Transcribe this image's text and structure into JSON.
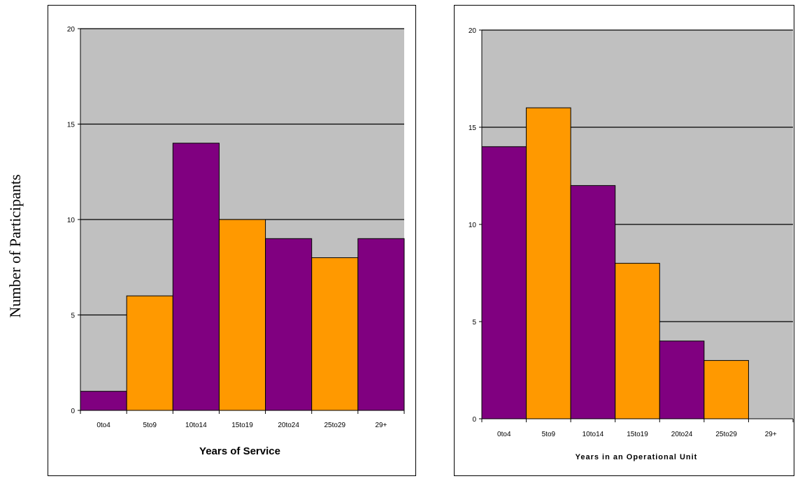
{
  "shared_ylabel": "Number of Participants",
  "colors": {
    "plot_bg": "#c0c0c0",
    "purple": "#800080",
    "orange": "#ff9900",
    "gridline": "#000000"
  },
  "chart_data": [
    {
      "type": "bar",
      "title": "",
      "xlabel": "Years of Service",
      "ylabel": "Number of Participants",
      "categories": [
        "0to4",
        "5to9",
        "10to14",
        "15to19",
        "20to24",
        "25to29",
        "29+"
      ],
      "values": [
        1,
        6,
        14,
        10,
        9,
        8,
        9
      ],
      "bar_colors": [
        "purple",
        "orange",
        "purple",
        "orange",
        "purple",
        "orange",
        "purple"
      ],
      "ylim": [
        0,
        20
      ],
      "yticks": [
        0,
        5,
        10,
        15,
        20
      ],
      "grid": true,
      "legend": "none"
    },
    {
      "type": "bar",
      "title": "",
      "xlabel": "Years in an Operational Unit",
      "ylabel": "Number of Participants",
      "categories": [
        "0to4",
        "5to9",
        "10to14",
        "15to19",
        "20to24",
        "25to29",
        "29+"
      ],
      "values": [
        14,
        16,
        12,
        8,
        4,
        3,
        0
      ],
      "bar_colors": [
        "purple",
        "orange",
        "purple",
        "orange",
        "purple",
        "orange",
        "purple"
      ],
      "ylim": [
        0,
        20
      ],
      "yticks": [
        0,
        5,
        10,
        15,
        20
      ],
      "grid": true,
      "legend": "none"
    }
  ]
}
